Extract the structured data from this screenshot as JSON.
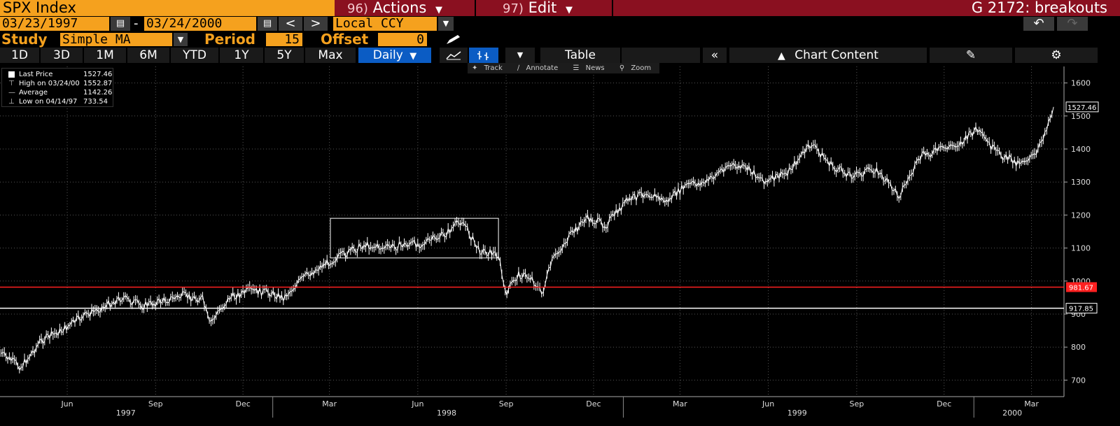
{
  "header": {
    "ticker": "SPX Index",
    "actions_num": "96)",
    "actions_label": "Actions",
    "edit_num": "97)",
    "edit_label": "Edit",
    "function_title": "G 2172: breakouts"
  },
  "range": {
    "start_date": "03/23/1997",
    "dash": "-",
    "end_date": "03/24/2000",
    "prev": "<",
    "next": ">",
    "currency": "Local CCY"
  },
  "study": {
    "label": "Study",
    "value": "Simple MA",
    "period_label": "Period",
    "period_value": "15",
    "offset_label": "Offset",
    "offset_value": "0"
  },
  "tabs": [
    {
      "label": "1D"
    },
    {
      "label": "3D"
    },
    {
      "label": "1M"
    },
    {
      "label": "6M"
    },
    {
      "label": "YTD"
    },
    {
      "label": "1Y"
    },
    {
      "label": "5Y"
    },
    {
      "label": "Max"
    }
  ],
  "frequency": "Daily",
  "table_label": "Table",
  "chart_content_label": "Chart Content",
  "chart_toolbar": {
    "track": "Track",
    "annotate": "Annotate",
    "news": "News",
    "zoom": "Zoom"
  },
  "legend": {
    "last_price_label": "Last Price",
    "last_price_value": "1527.46",
    "high_label": "High on 03/24/00",
    "high_value": "1552.87",
    "average_label": "Average",
    "average_value": "1142.26",
    "low_label": "Low on 04/14/97",
    "low_value": "733.54"
  },
  "colors": {
    "accent": "#f5a11e",
    "header_bg": "#8a1020",
    "price_line": "#ffffff",
    "resistance_line": "#ff2020",
    "support_line": "#ffffff",
    "active_tab": "#0b5cc4"
  },
  "chart_data": {
    "type": "line",
    "title": "",
    "xlabel": "",
    "ylabel": "",
    "ylim": [
      650,
      1650
    ],
    "grid": true,
    "y_ticks": [
      "700",
      "800",
      "900",
      "1000",
      "1100",
      "1200",
      "1300",
      "1400",
      "1500",
      "1600"
    ],
    "x_tick_labels": [
      "Jun",
      "Sep",
      "Dec",
      "Mar",
      "Jun",
      "Sep",
      "Dec",
      "Mar",
      "Jun",
      "Sep",
      "Dec",
      "Mar"
    ],
    "year_labels": [
      "1997",
      "1998",
      "1999",
      "2000"
    ],
    "horizontal_lines": [
      {
        "value": 981.67,
        "label": "981.67",
        "color": "#ff2020"
      },
      {
        "value": 917.85,
        "label": "917.85",
        "color": "#ffffff"
      }
    ],
    "last_value_label": "1527.46",
    "annotation_box": {
      "x_start": "1998-03",
      "x_end": "1998-08",
      "y_low": 1070,
      "y_high": 1190
    },
    "series": [
      {
        "name": "Last Price",
        "x": [
          "1997-03-24",
          "1997-04-14",
          "1997-05-05",
          "1997-05-26",
          "1997-06-16",
          "1997-07-07",
          "1997-07-28",
          "1997-08-18",
          "1997-09-08",
          "1997-09-29",
          "1997-10-20",
          "1997-10-27",
          "1997-11-17",
          "1997-12-08",
          "1997-12-29",
          "1998-01-12",
          "1998-02-02",
          "1998-02-23",
          "1998-03-16",
          "1998-04-06",
          "1998-04-27",
          "1998-05-18",
          "1998-06-08",
          "1998-06-29",
          "1998-07-17",
          "1998-08-03",
          "1998-08-24",
          "1998-08-31",
          "1998-09-14",
          "1998-09-28",
          "1998-10-08",
          "1998-10-19",
          "1998-11-02",
          "1998-11-23",
          "1998-12-14",
          "1999-01-04",
          "1999-01-25",
          "1999-02-15",
          "1999-03-08",
          "1999-03-29",
          "1999-04-19",
          "1999-05-10",
          "1999-05-31",
          "1999-06-21",
          "1999-07-16",
          "1999-08-09",
          "1999-08-30",
          "1999-09-20",
          "1999-10-15",
          "1999-11-08",
          "1999-11-29",
          "1999-12-20",
          "2000-01-03",
          "2000-01-24",
          "2000-02-14",
          "2000-03-06",
          "2000-03-24"
        ],
        "values": [
          780,
          740,
          820,
          850,
          890,
          920,
          950,
          925,
          940,
          955,
          945,
          870,
          950,
          970,
          965,
          950,
          1010,
          1050,
          1080,
          1110,
          1100,
          1110,
          1115,
          1140,
          1185,
          1095,
          1080,
          960,
          1020,
          1010,
          960,
          1060,
          1120,
          1190,
          1170,
          1240,
          1270,
          1240,
          1290,
          1300,
          1350,
          1340,
          1300,
          1330,
          1415,
          1340,
          1320,
          1340,
          1260,
          1380,
          1400,
          1420,
          1460,
          1390,
          1360,
          1380,
          1527.46
        ]
      }
    ]
  }
}
